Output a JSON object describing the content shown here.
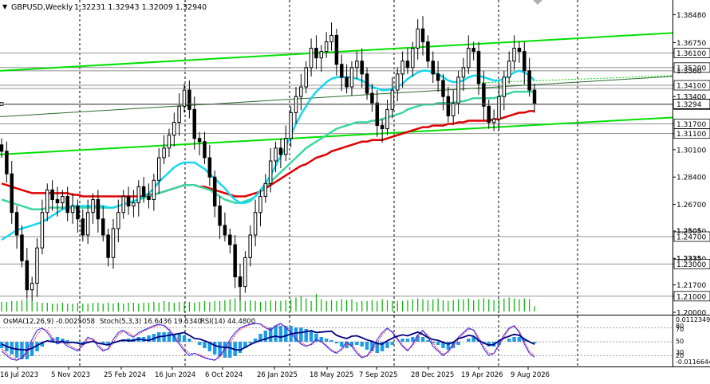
{
  "header": {
    "symbol": "GBPUSD,Weekly",
    "ohlc": "1.32231 1.32943 1.32009 1.32940"
  },
  "indicator_header": {
    "osma": "OsMA(12,26,9) -0.0025058",
    "stoch": "Stoch(5,3,3) 16.6436 19.5340",
    "rsi": "RSI(14) 44.4800"
  },
  "colors": {
    "candle": "#000000",
    "ma_red": "#e00000",
    "ma_teal": "#3cd7a0",
    "ma_cyan": "#14d7f0",
    "trend_green": "#00e000",
    "level_line": "#909090",
    "grid": "#000000",
    "osma_hist": "#1e9be6",
    "stoch_main": "#2020ff",
    "stoch_signal": "#ff3030",
    "rsi_line": "#000080",
    "volume": "#00b000"
  },
  "chart_data": {
    "type": "candlestick",
    "title": "GBPUSD,Weekly",
    "y_ticks": [
      1.3848,
      1.3675,
      1.361,
      1.352,
      1.341,
      1.334,
      1.329,
      1.317,
      1.311,
      1.301,
      1.284,
      1.267,
      1.2505,
      1.247,
      1.2335,
      1.23,
      1.217,
      1.21,
      1.2
    ],
    "boxed_levels": [
      1.361,
      1.352,
      1.341,
      1.329,
      1.317,
      1.311,
      1.247,
      1.23,
      1.21
    ],
    "partial_labels": [
      "1.3500",
      "1.2335",
      "1.2505"
    ],
    "x_labels": [
      "16 Jul 2023",
      "5 Nov 2023",
      "25 Feb 2024",
      "16 Jun 2024",
      "6 Oct 2024",
      "26 Jan 2025",
      "18 May 2025",
      "7 Sep 2025",
      "28 Dec 2025",
      "19 Apr 2026",
      "9 Aug 2026"
    ],
    "ylim": [
      1.2,
      1.39
    ],
    "current_price": 1.3294,
    "closes": [
      1.3,
      1.286,
      1.262,
      1.248,
      1.232,
      1.214,
      1.218,
      1.24,
      1.262,
      1.276,
      1.27,
      1.268,
      1.272,
      1.262,
      1.266,
      1.258,
      1.248,
      1.262,
      1.27,
      1.258,
      1.248,
      1.234,
      1.252,
      1.262,
      1.272,
      1.266,
      1.268,
      1.278,
      1.272,
      1.27,
      1.282,
      1.296,
      1.302,
      1.31,
      1.318,
      1.328,
      1.338,
      1.326,
      1.308,
      1.306,
      1.296,
      1.284,
      1.266,
      1.254,
      1.248,
      1.242,
      1.222,
      1.216,
      1.234,
      1.248,
      1.262,
      1.272,
      1.28,
      1.294,
      1.302,
      1.298,
      1.308,
      1.324,
      1.334,
      1.34,
      1.352,
      1.364,
      1.358,
      1.362,
      1.368,
      1.372,
      1.354,
      1.346,
      1.34,
      1.352,
      1.356,
      1.348,
      1.336,
      1.33,
      1.316,
      1.314,
      1.326,
      1.338,
      1.348,
      1.356,
      1.352,
      1.364,
      1.376,
      1.368,
      1.356,
      1.348,
      1.344,
      1.334,
      1.322,
      1.33,
      1.346,
      1.352,
      1.364,
      1.362,
      1.342,
      1.328,
      1.318,
      1.32,
      1.334,
      1.346,
      1.356,
      1.364,
      1.362,
      1.35,
      1.338,
      1.3294
    ],
    "ma_red": [
      1.28,
      1.279,
      1.278,
      1.277,
      1.276,
      1.275,
      1.274,
      1.274,
      1.274,
      1.274,
      1.274,
      1.274,
      1.274,
      1.274,
      1.273,
      1.273,
      1.272,
      1.272,
      1.272,
      1.272,
      1.272,
      1.272,
      1.272,
      1.272,
      1.272,
      1.272,
      1.272,
      1.272,
      1.272,
      1.273,
      1.273,
      1.274,
      1.275,
      1.276,
      1.277,
      1.278,
      1.279,
      1.279,
      1.279,
      1.278,
      1.278,
      1.277,
      1.276,
      1.275,
      1.274,
      1.273,
      1.272,
      1.272,
      1.272,
      1.273,
      1.274,
      1.275,
      1.277,
      1.279,
      1.281,
      1.283,
      1.285,
      1.287,
      1.289,
      1.291,
      1.292,
      1.294,
      1.296,
      1.297,
      1.298,
      1.3,
      1.301,
      1.302,
      1.303,
      1.304,
      1.305,
      1.306,
      1.306,
      1.307,
      1.307,
      1.307,
      1.308,
      1.309,
      1.31,
      1.311,
      1.312,
      1.313,
      1.314,
      1.315,
      1.315,
      1.316,
      1.316,
      1.316,
      1.317,
      1.317,
      1.318,
      1.318,
      1.319,
      1.319,
      1.319,
      1.319,
      1.319,
      1.32,
      1.32,
      1.321,
      1.322,
      1.323,
      1.324,
      1.324,
      1.325,
      1.325
    ],
    "ma_teal": [
      1.27,
      1.269,
      1.268,
      1.267,
      1.266,
      1.265,
      1.264,
      1.264,
      1.264,
      1.265,
      1.265,
      1.265,
      1.265,
      1.265,
      1.265,
      1.265,
      1.265,
      1.265,
      1.265,
      1.265,
      1.265,
      1.265,
      1.265,
      1.266,
      1.267,
      1.268,
      1.269,
      1.27,
      1.271,
      1.272,
      1.273,
      1.274,
      1.275,
      1.276,
      1.277,
      1.278,
      1.279,
      1.279,
      1.279,
      1.278,
      1.277,
      1.276,
      1.274,
      1.272,
      1.27,
      1.269,
      1.268,
      1.268,
      1.269,
      1.27,
      1.272,
      1.275,
      1.278,
      1.281,
      1.284,
      1.287,
      1.29,
      1.293,
      1.296,
      1.299,
      1.302,
      1.304,
      1.306,
      1.308,
      1.31,
      1.312,
      1.314,
      1.315,
      1.316,
      1.317,
      1.318,
      1.318,
      1.318,
      1.319,
      1.319,
      1.32,
      1.321,
      1.322,
      1.323,
      1.324,
      1.326,
      1.327,
      1.328,
      1.329,
      1.329,
      1.329,
      1.33,
      1.33,
      1.33,
      1.33,
      1.331,
      1.331,
      1.332,
      1.333,
      1.333,
      1.333,
      1.333,
      1.333,
      1.334,
      1.335,
      1.336,
      1.337,
      1.337,
      1.337,
      1.337,
      1.337
    ],
    "ma_cyan": [
      1.245,
      1.247,
      1.249,
      1.251,
      1.252,
      1.253,
      1.254,
      1.255,
      1.256,
      1.258,
      1.26,
      1.262,
      1.264,
      1.265,
      1.266,
      1.266,
      1.266,
      1.266,
      1.266,
      1.266,
      1.266,
      1.265,
      1.265,
      1.266,
      1.267,
      1.268,
      1.269,
      1.27,
      1.272,
      1.274,
      1.277,
      1.281,
      1.284,
      1.287,
      1.29,
      1.292,
      1.293,
      1.293,
      1.293,
      1.291,
      1.289,
      1.286,
      1.283,
      1.28,
      1.277,
      1.273,
      1.27,
      1.268,
      1.268,
      1.269,
      1.272,
      1.276,
      1.28,
      1.285,
      1.291,
      1.297,
      1.303,
      1.31,
      1.317,
      1.323,
      1.328,
      1.333,
      1.337,
      1.34,
      1.343,
      1.345,
      1.346,
      1.346,
      1.346,
      1.346,
      1.345,
      1.344,
      1.342,
      1.34,
      1.339,
      1.338,
      1.338,
      1.339,
      1.34,
      1.342,
      1.345,
      1.347,
      1.349,
      1.35,
      1.35,
      1.349,
      1.348,
      1.346,
      1.344,
      1.343,
      1.343,
      1.344,
      1.346,
      1.347,
      1.347,
      1.346,
      1.345,
      1.344,
      1.344,
      1.345,
      1.347,
      1.349,
      1.35,
      1.349,
      1.347,
      1.344
    ],
    "osma": [
      -0.4,
      -0.6,
      -0.8,
      -1.0,
      -1.1,
      -1.1,
      -0.9,
      -0.6,
      -0.3,
      0.0,
      0.2,
      0.3,
      0.2,
      0.1,
      0.0,
      -0.1,
      -0.2,
      -0.1,
      0.0,
      0.0,
      -0.1,
      -0.2,
      -0.1,
      0.0,
      0.1,
      0.2,
      0.2,
      0.3,
      0.3,
      0.4,
      0.5,
      0.6,
      0.6,
      0.6,
      0.5,
      0.5,
      0.4,
      0.2,
      0.0,
      -0.2,
      -0.4,
      -0.6,
      -0.8,
      -0.9,
      -1.0,
      -1.0,
      -0.9,
      -0.7,
      -0.4,
      -0.1,
      0.2,
      0.5,
      0.7,
      0.9,
      1.0,
      1.0,
      1.0,
      1.0,
      0.9,
      0.9,
      0.8,
      0.7,
      0.5,
      0.3,
      0.2,
      0.1,
      -0.1,
      -0.3,
      -0.4,
      -0.3,
      -0.2,
      -0.3,
      -0.5,
      -0.6,
      -0.7,
      -0.6,
      -0.4,
      -0.2,
      0.0,
      0.2,
      0.2,
      0.3,
      0.4,
      0.3,
      0.1,
      -0.1,
      -0.2,
      -0.4,
      -0.5,
      -0.4,
      -0.2,
      0.0,
      0.2,
      0.3,
      0.1,
      -0.1,
      -0.3,
      -0.3,
      -0.2,
      0.0,
      0.2,
      0.3,
      0.3,
      0.2,
      0.0,
      -0.1
    ],
    "stoch_main": [
      30,
      20,
      12,
      10,
      15,
      30,
      55,
      75,
      80,
      70,
      55,
      45,
      50,
      40,
      35,
      30,
      45,
      60,
      55,
      40,
      30,
      35,
      55,
      70,
      75,
      65,
      60,
      70,
      75,
      80,
      85,
      88,
      85,
      75,
      60,
      45,
      30,
      20,
      25,
      20,
      15,
      12,
      10,
      20,
      35,
      55,
      70,
      80,
      85,
      88,
      90,
      88,
      80,
      75,
      85,
      90,
      80,
      70,
      55,
      45,
      40,
      45,
      55,
      50,
      40,
      30,
      25,
      35,
      50,
      40,
      25,
      15,
      20,
      35,
      55,
      70,
      80,
      70,
      55,
      40,
      30,
      45,
      65,
      75,
      60,
      40,
      30,
      20,
      30,
      45,
      60,
      70,
      80,
      75,
      55,
      35,
      20,
      25,
      45,
      65,
      80,
      85,
      70,
      45,
      25,
      16.6
    ],
    "stoch_signal": [
      35,
      25,
      15,
      12,
      14,
      25,
      45,
      65,
      78,
      75,
      60,
      50,
      48,
      45,
      38,
      33,
      40,
      55,
      57,
      45,
      33,
      33,
      48,
      65,
      73,
      70,
      62,
      66,
      73,
      78,
      83,
      86,
      86,
      78,
      65,
      50,
      35,
      25,
      25,
      22,
      17,
      13,
      11,
      17,
      30,
      48,
      65,
      77,
      83,
      87,
      89,
      89,
      82,
      77,
      82,
      88,
      83,
      73,
      60,
      48,
      42,
      43,
      52,
      51,
      43,
      33,
      27,
      32,
      45,
      43,
      30,
      18,
      18,
      30,
      48,
      65,
      77,
      73,
      58,
      43,
      32,
      41,
      60,
      72,
      65,
      47,
      33,
      23,
      27,
      40,
      55,
      67,
      77,
      76,
      60,
      40,
      25,
      25,
      40,
      60,
      77,
      83,
      73,
      50,
      30,
      19.5
    ],
    "rsi": [
      45,
      40,
      36,
      34,
      33,
      32,
      36,
      42,
      48,
      52,
      50,
      49,
      51,
      48,
      49,
      47,
      45,
      49,
      51,
      47,
      45,
      43,
      48,
      51,
      54,
      52,
      53,
      56,
      54,
      53,
      57,
      61,
      62,
      64,
      66,
      68,
      70,
      64,
      57,
      56,
      52,
      48,
      42,
      39,
      38,
      37,
      33,
      32,
      38,
      44,
      49,
      53,
      56,
      60,
      62,
      60,
      63,
      67,
      69,
      70,
      72,
      74,
      70,
      71,
      72,
      73,
      64,
      60,
      57,
      62,
      63,
      59,
      54,
      51,
      46,
      45,
      52,
      58,
      62,
      65,
      63,
      67,
      71,
      66,
      59,
      55,
      53,
      49,
      45,
      49,
      57,
      60,
      64,
      62,
      53,
      47,
      43,
      44,
      52,
      58,
      62,
      66,
      64,
      56,
      50,
      44.5
    ],
    "volume": [
      0.55,
      0.55,
      0.6,
      0.6,
      0.65,
      0.7,
      0.6,
      0.55,
      0.5,
      0.5,
      0.45,
      0.45,
      0.5,
      0.45,
      0.45,
      0.5,
      0.45,
      0.45,
      0.5,
      0.5,
      0.45,
      0.5,
      0.45,
      0.5,
      0.45,
      0.5,
      0.5,
      0.45,
      0.5,
      0.5,
      0.55,
      0.5,
      0.6,
      0.55,
      0.5,
      0.55,
      0.5,
      0.55,
      0.5,
      0.55,
      0.6,
      0.55,
      0.6,
      0.6,
      0.65,
      0.7,
      0.75,
      0.7,
      0.6,
      0.65,
      0.6,
      0.55,
      0.6,
      0.65,
      0.6,
      0.6,
      0.65,
      0.7,
      0.8,
      0.9,
      0.75,
      0.6,
      1.0,
      0.7,
      0.6,
      0.65,
      0.6,
      0.7,
      0.65,
      0.7,
      0.55,
      0.6,
      0.6,
      0.65,
      0.6,
      0.7,
      0.65,
      0.6,
      0.6,
      0.6,
      0.65,
      0.7,
      0.75,
      0.7,
      0.65,
      0.7,
      0.75,
      0.65,
      0.6,
      0.65,
      0.7,
      0.7,
      0.75,
      0.65,
      0.7,
      0.75,
      0.7,
      0.65,
      0.7,
      0.75,
      0.8,
      0.75,
      0.7,
      0.75,
      0.7,
      0.3
    ],
    "sub_ticks": [
      "0.0112349",
      "70",
      "30",
      "-0.0116644"
    ],
    "sub_marks": [
      "80",
      "50",
      "20"
    ]
  }
}
